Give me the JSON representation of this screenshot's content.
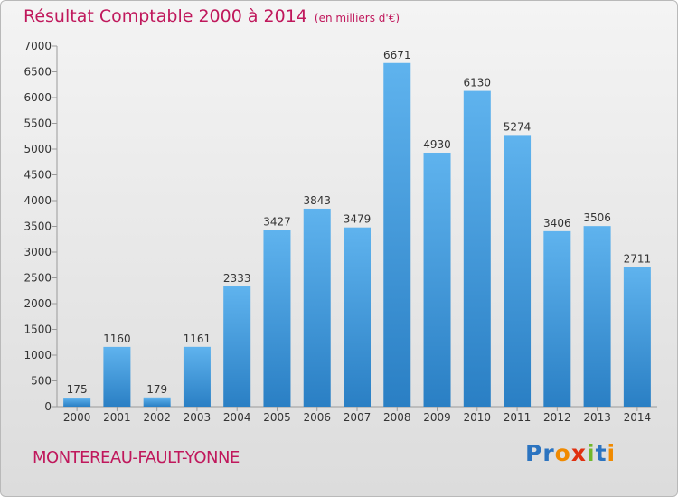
{
  "chart_data": {
    "type": "bar",
    "title": "Résultat Comptable 2000 à 2014",
    "subtitle": "(en milliers d'€)",
    "categories": [
      "2000",
      "2001",
      "2002",
      "2003",
      "2004",
      "2005",
      "2006",
      "2007",
      "2008",
      "2009",
      "2010",
      "2011",
      "2012",
      "2013",
      "2014"
    ],
    "values": [
      175,
      1160,
      179,
      1161,
      2333,
      3427,
      3843,
      3479,
      6671,
      4930,
      6130,
      5274,
      3406,
      3506,
      2711
    ],
    "ylim": [
      0,
      7000
    ],
    "yticks": [
      0,
      500,
      1000,
      1500,
      2000,
      2500,
      3000,
      3500,
      4000,
      4500,
      5000,
      5500,
      6000,
      6500,
      7000
    ],
    "grid": false,
    "bar_color": "#3d93d9"
  },
  "footer": {
    "commune": "MONTEREAU-FAULT-YONNE",
    "brand": "Proxiti"
  },
  "colors": {
    "title": "#c0185c",
    "brand_letters": [
      "#2c74c0",
      "#2c74c0",
      "#f08a00",
      "#e03010",
      "#71b82a",
      "#2c74c0",
      "#f08a00"
    ]
  }
}
